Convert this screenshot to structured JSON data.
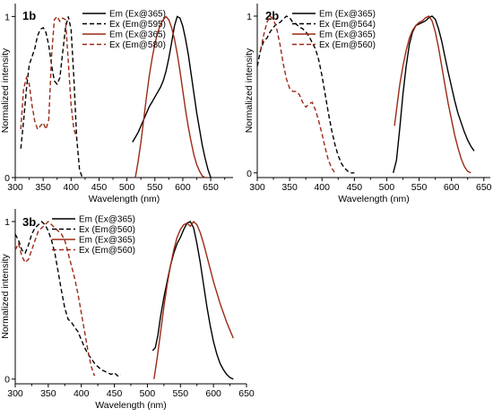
{
  "colors": {
    "black": "#000000",
    "brown": "#9b2a16"
  },
  "chart_data": [
    {
      "panel": "1b",
      "type": "line",
      "xlabel": "Wavelength (nm)",
      "ylabel": "Normalized intensity",
      "xlim": [
        300,
        690
      ],
      "ylim": [
        0,
        1.08
      ],
      "xticks": [
        300,
        350,
        400,
        450,
        500,
        550,
        600,
        650
      ],
      "yticks": [
        0,
        1
      ],
      "legend_position": "top-right",
      "series": [
        {
          "name": "Em (Ex@365)",
          "color": "black",
          "dash": false,
          "x": [
            510,
            515,
            520,
            525,
            530,
            535,
            540,
            545,
            550,
            555,
            560,
            565,
            570,
            575,
            580,
            585,
            590,
            595,
            600,
            605,
            610,
            615,
            620,
            625,
            630,
            635,
            640,
            645,
            650
          ],
          "y": [
            0.22,
            0.25,
            0.28,
            0.32,
            0.36,
            0.4,
            0.44,
            0.47,
            0.5,
            0.53,
            0.56,
            0.6,
            0.66,
            0.74,
            0.84,
            0.94,
            1.0,
            0.99,
            0.94,
            0.86,
            0.76,
            0.64,
            0.52,
            0.4,
            0.3,
            0.2,
            0.12,
            0.05,
            0.0
          ]
        },
        {
          "name": "Ex (Em@595)",
          "color": "black",
          "dash": true,
          "x": [
            310,
            315,
            320,
            325,
            330,
            335,
            340,
            345,
            350,
            355,
            360,
            365,
            370,
            375,
            380,
            385,
            390,
            395,
            400,
            405,
            410,
            415,
            420
          ],
          "y": [
            0.18,
            0.35,
            0.55,
            0.7,
            0.75,
            0.8,
            0.88,
            0.92,
            0.93,
            0.9,
            0.82,
            0.7,
            0.6,
            0.58,
            0.62,
            0.78,
            0.93,
            1.0,
            0.92,
            0.62,
            0.25,
            0.05,
            0.0
          ]
        },
        {
          "name": "Em (Ex@365)",
          "color": "brown",
          "dash": false,
          "x": [
            515,
            520,
            525,
            530,
            535,
            540,
            545,
            550,
            555,
            560,
            565,
            570,
            575,
            580,
            585,
            590,
            595,
            600,
            605,
            610,
            615,
            620,
            625,
            630,
            635,
            640
          ],
          "y": [
            0.0,
            0.1,
            0.22,
            0.36,
            0.5,
            0.63,
            0.74,
            0.83,
            0.9,
            0.95,
            0.98,
            1.0,
            0.98,
            0.93,
            0.86,
            0.77,
            0.66,
            0.54,
            0.42,
            0.31,
            0.22,
            0.14,
            0.08,
            0.04,
            0.01,
            0.0
          ]
        },
        {
          "name": "Ex (Em@580)",
          "color": "brown",
          "dash": true,
          "x": [
            310,
            315,
            320,
            325,
            330,
            335,
            340,
            345,
            350,
            355,
            360,
            365,
            370,
            375,
            380,
            385,
            390,
            395,
            400,
            405,
            410
          ],
          "y": [
            0.3,
            0.55,
            0.62,
            0.58,
            0.45,
            0.35,
            0.3,
            0.32,
            0.34,
            0.3,
            0.36,
            0.75,
            0.98,
            1.0,
            0.97,
            0.99,
            0.98,
            0.72,
            0.45,
            0.3,
            0.25
          ]
        }
      ]
    },
    {
      "panel": "2b",
      "type": "line",
      "xlabel": "Wavelength (nm)",
      "ylabel": "Normalized intensity",
      "xlim": [
        300,
        660
      ],
      "ylim": [
        -0.03,
        1.08
      ],
      "xticks": [
        300,
        350,
        400,
        450,
        500,
        550,
        600,
        650
      ],
      "yticks": [
        0,
        1
      ],
      "legend_position": "top-left",
      "series": [
        {
          "name": "Em (Ex@365)",
          "color": "black",
          "dash": false,
          "x": [
            510,
            515,
            520,
            525,
            530,
            535,
            540,
            545,
            550,
            555,
            560,
            565,
            570,
            575,
            580,
            585,
            590,
            595,
            600,
            605,
            610,
            615,
            620,
            625,
            630,
            635
          ],
          "y": [
            0.0,
            0.08,
            0.28,
            0.5,
            0.68,
            0.82,
            0.9,
            0.94,
            0.95,
            0.96,
            0.97,
            0.99,
            1.0,
            0.98,
            0.92,
            0.84,
            0.74,
            0.64,
            0.55,
            0.46,
            0.38,
            0.32,
            0.26,
            0.21,
            0.17,
            0.14
          ]
        },
        {
          "name": "Ex (Em@564)",
          "color": "black",
          "dash": true,
          "x": [
            300,
            305,
            310,
            315,
            320,
            325,
            330,
            335,
            340,
            345,
            350,
            355,
            360,
            365,
            370,
            375,
            380,
            385,
            390,
            395,
            400,
            405,
            410,
            415,
            420,
            425,
            430,
            435,
            440,
            445,
            450
          ],
          "y": [
            0.68,
            0.78,
            0.84,
            0.86,
            0.9,
            0.93,
            0.95,
            0.96,
            0.98,
            1.0,
            0.99,
            0.96,
            0.95,
            0.93,
            0.92,
            0.9,
            0.87,
            0.83,
            0.79,
            0.72,
            0.62,
            0.5,
            0.38,
            0.27,
            0.18,
            0.11,
            0.06,
            0.03,
            0.01,
            0.0,
            0.0
          ]
        },
        {
          "name": "Em (Ex@365)",
          "color": "brown",
          "dash": false,
          "x": [
            512,
            515,
            520,
            525,
            530,
            535,
            540,
            545,
            550,
            555,
            560,
            565,
            570,
            575,
            580,
            585,
            590,
            595,
            600,
            605,
            610,
            615,
            620,
            625,
            630
          ],
          "y": [
            0.3,
            0.4,
            0.56,
            0.68,
            0.78,
            0.86,
            0.91,
            0.94,
            0.96,
            0.97,
            0.99,
            1.0,
            0.97,
            0.9,
            0.8,
            0.68,
            0.56,
            0.44,
            0.34,
            0.24,
            0.16,
            0.09,
            0.04,
            0.01,
            0.0
          ]
        },
        {
          "name": "Ex (Em@560)",
          "color": "brown",
          "dash": true,
          "x": [
            305,
            310,
            315,
            320,
            325,
            330,
            335,
            340,
            345,
            350,
            355,
            360,
            365,
            370,
            375,
            380,
            385,
            390,
            395,
            400,
            405,
            410,
            415,
            420
          ],
          "y": [
            0.78,
            0.88,
            0.96,
            1.0,
            0.98,
            0.92,
            0.82,
            0.7,
            0.6,
            0.54,
            0.52,
            0.52,
            0.5,
            0.45,
            0.42,
            0.44,
            0.45,
            0.4,
            0.33,
            0.25,
            0.16,
            0.08,
            0.03,
            0.0
          ]
        }
      ]
    },
    {
      "panel": "3b",
      "type": "line",
      "xlabel": "Wavelength (nm)",
      "ylabel": "Normalized intensity",
      "xlim": [
        300,
        650
      ],
      "ylim": [
        -0.03,
        1.08
      ],
      "xticks": [
        300,
        350,
        400,
        450,
        500,
        550,
        600,
        650
      ],
      "yticks": [
        0,
        1
      ],
      "legend_position": "top-left",
      "series": [
        {
          "name": "Em (Ex@365)",
          "color": "black",
          "dash": false,
          "x": [
            508,
            512,
            516,
            520,
            525,
            530,
            535,
            540,
            545,
            550,
            555,
            560,
            565,
            570,
            575,
            580,
            585,
            590,
            595,
            600,
            605,
            610,
            615,
            620,
            625,
            630
          ],
          "y": [
            0.18,
            0.2,
            0.28,
            0.4,
            0.52,
            0.62,
            0.72,
            0.8,
            0.86,
            0.9,
            0.95,
            0.99,
            1.0,
            0.96,
            0.86,
            0.74,
            0.6,
            0.46,
            0.34,
            0.24,
            0.16,
            0.1,
            0.06,
            0.03,
            0.01,
            0.0
          ]
        },
        {
          "name": "Ex (Em@560)",
          "color": "black",
          "dash": true,
          "x": [
            300,
            305,
            310,
            315,
            320,
            325,
            330,
            335,
            340,
            345,
            350,
            355,
            360,
            365,
            370,
            375,
            380,
            385,
            390,
            395,
            400,
            405,
            410,
            415,
            420,
            425,
            430,
            435,
            440,
            445,
            450,
            455,
            460
          ],
          "y": [
            0.92,
            0.88,
            0.82,
            0.8,
            0.85,
            0.92,
            0.96,
            0.98,
            1.0,
            0.98,
            0.94,
            0.88,
            0.8,
            0.68,
            0.56,
            0.45,
            0.38,
            0.36,
            0.33,
            0.3,
            0.25,
            0.2,
            0.16,
            0.13,
            0.1,
            0.08,
            0.06,
            0.05,
            0.04,
            0.03,
            0.04,
            0.02,
            0.03
          ]
        },
        {
          "name": "Em (Ex@365)",
          "color": "brown",
          "dash": false,
          "x": [
            510,
            515,
            520,
            525,
            530,
            535,
            540,
            545,
            550,
            555,
            560,
            565,
            570,
            575,
            580,
            585,
            590,
            595,
            600,
            605,
            610,
            615,
            620,
            625,
            630
          ],
          "y": [
            0.0,
            0.14,
            0.3,
            0.46,
            0.6,
            0.72,
            0.82,
            0.9,
            0.95,
            0.98,
            0.99,
            0.97,
            1.0,
            0.98,
            0.93,
            0.86,
            0.78,
            0.7,
            0.62,
            0.55,
            0.48,
            0.42,
            0.36,
            0.31,
            0.26
          ]
        },
        {
          "name": "Ex (Em@560)",
          "color": "brown",
          "dash": true,
          "x": [
            300,
            305,
            310,
            315,
            320,
            325,
            330,
            335,
            340,
            345,
            350,
            355,
            360,
            365,
            370,
            375,
            380,
            385,
            390,
            395,
            400,
            405,
            410,
            415,
            420
          ],
          "y": [
            0.82,
            0.86,
            0.78,
            0.74,
            0.76,
            0.82,
            0.88,
            0.94,
            0.96,
            0.98,
            1.0,
            0.98,
            0.96,
            0.94,
            0.92,
            0.88,
            0.8,
            0.72,
            0.64,
            0.54,
            0.42,
            0.3,
            0.18,
            0.08,
            0.02
          ]
        }
      ]
    }
  ]
}
